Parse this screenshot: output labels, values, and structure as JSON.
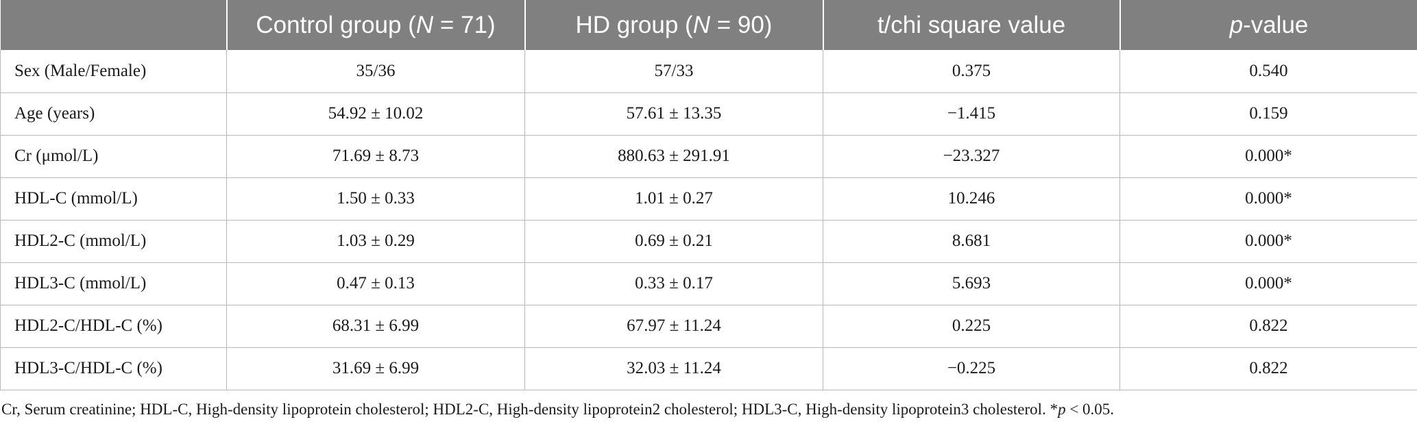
{
  "table": {
    "header": {
      "col0": "",
      "control": {
        "pre": "Control group (",
        "n": "N",
        "post": " = 71)"
      },
      "hd": {
        "pre": "HD group (",
        "n": "N",
        "post": " = 90)"
      },
      "stat": "t/chi square value",
      "pvalue": {
        "p": "p",
        "post": "-value"
      }
    },
    "rows": [
      {
        "label": "Sex (Male/Female)",
        "control": "35/36",
        "hd": "57/33",
        "stat": "0.375",
        "p": "0.540"
      },
      {
        "label": "Age (years)",
        "control": "54.92 ± 10.02",
        "hd": "57.61 ± 13.35",
        "stat": "−1.415",
        "p": "0.159"
      },
      {
        "label": "Cr (μmol/L)",
        "control": "71.69 ± 8.73",
        "hd": "880.63 ± 291.91",
        "stat": "−23.327",
        "p": "0.000*"
      },
      {
        "label": "HDL-C (mmol/L)",
        "control": "1.50 ± 0.33",
        "hd": "1.01 ± 0.27",
        "stat": "10.246",
        "p": "0.000*"
      },
      {
        "label": "HDL2-C (mmol/L)",
        "control": "1.03 ± 0.29",
        "hd": "0.69 ± 0.21",
        "stat": "8.681",
        "p": "0.000*"
      },
      {
        "label": "HDL3-C (mmol/L)",
        "control": "0.47 ± 0.13",
        "hd": "0.33 ± 0.17",
        "stat": "5.693",
        "p": "0.000*"
      },
      {
        "label": "HDL2-C/HDL-C (%)",
        "control": "68.31 ± 6.99",
        "hd": "67.97 ± 11.24",
        "stat": "0.225",
        "p": "0.822"
      },
      {
        "label": "HDL3-C/HDL-C (%)",
        "control": "31.69 ± 6.99",
        "hd": "32.03 ± 11.24",
        "stat": "−0.225",
        "p": "0.822"
      }
    ]
  },
  "footnote": {
    "text": "Cr, Serum creatinine; HDL-C, High-density lipoprotein cholesterol; HDL2-C, High-density lipoprotein2 cholesterol; HDL3-C, High-density lipoprotein3 cholesterol. *",
    "p": "p",
    "post": " < 0.05."
  },
  "colors": {
    "header_bg": "#808080",
    "header_text": "#ffffff",
    "grid": "#b8b8b8"
  }
}
